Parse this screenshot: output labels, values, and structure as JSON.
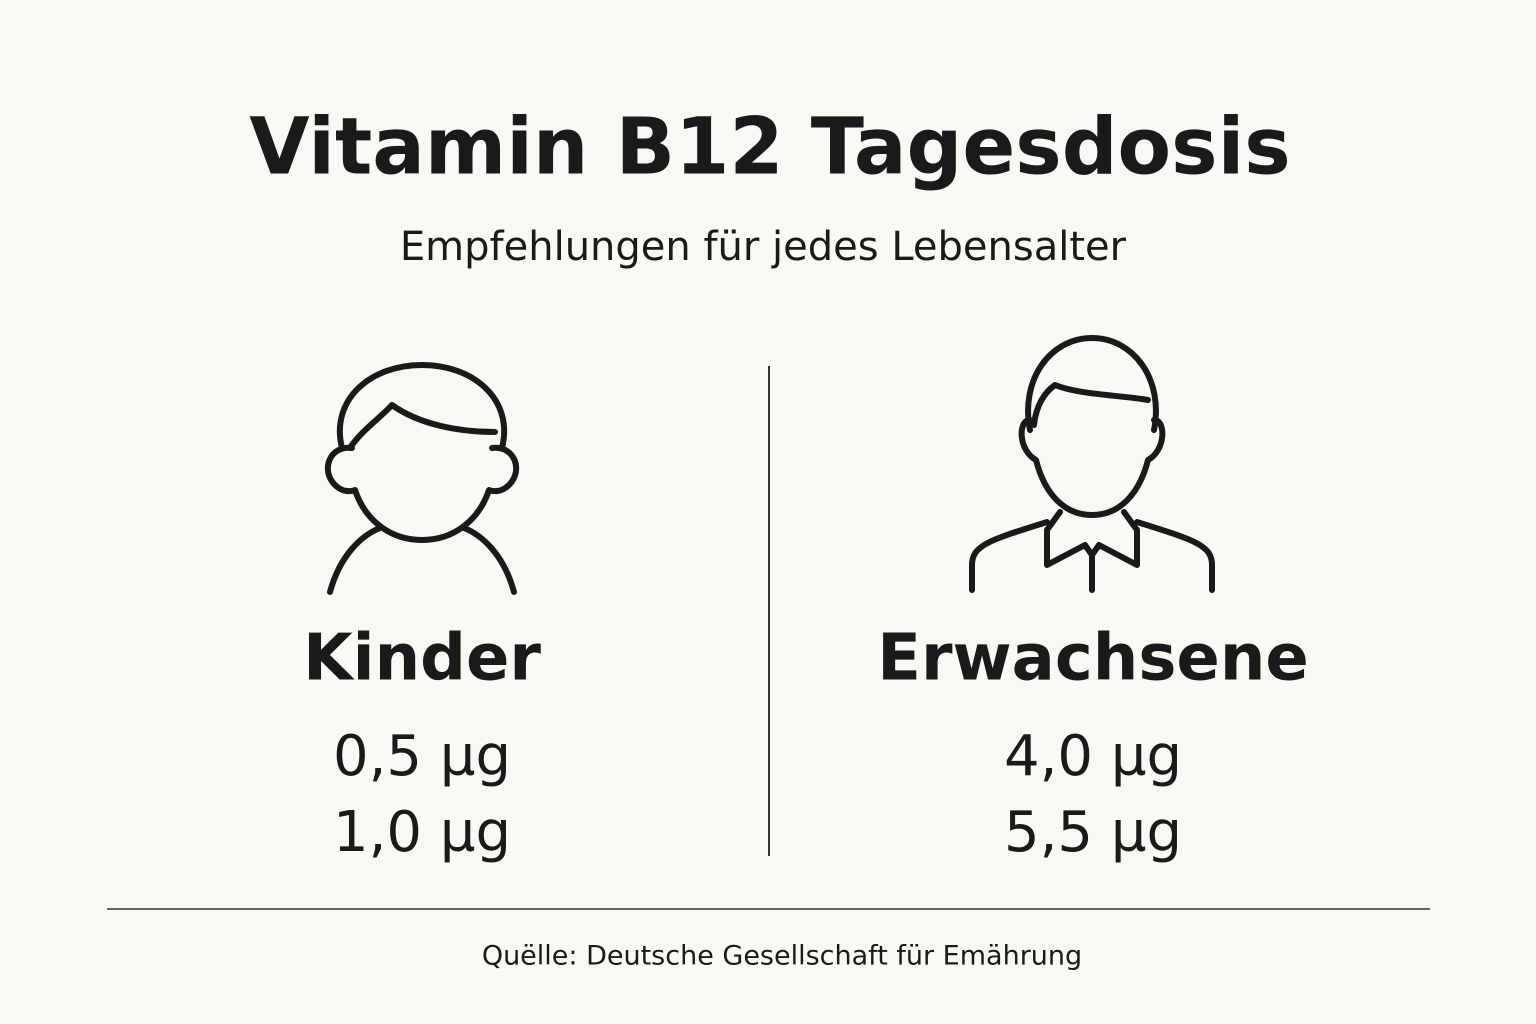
{
  "header": {
    "title": "Vitamin B12 Tagesdosis",
    "subtitle": "Empfehlungen für jedes Lebensalter"
  },
  "groups": [
    {
      "label": "Kinder",
      "values": [
        "0,5 µg",
        "1,0 µg"
      ]
    },
    {
      "label": "Erwachsene",
      "values": [
        "4,0 µg",
        "5,5 µg"
      ]
    }
  ],
  "footer": {
    "source": "Quëlle: Deutsche Gesellschaft für Emährung"
  }
}
